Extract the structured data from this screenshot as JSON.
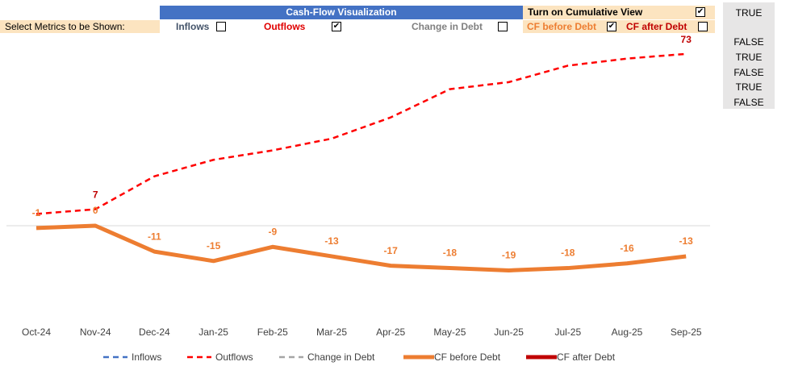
{
  "controls": {
    "title": "Cash-Flow Visualization",
    "cumulative": {
      "label": "Turn on Cumulative View",
      "checked": true
    },
    "select_label": "Select Metrics to be Shown:",
    "metrics": [
      {
        "label": "Inflows",
        "checked": false,
        "color": "#44546a"
      },
      {
        "label": "Outflows",
        "checked": true,
        "color": "#e00000"
      },
      {
        "label": "Change in Debt",
        "checked": false,
        "color": "#808080"
      },
      {
        "label": "CF before Debt",
        "checked": true,
        "color": "#ed7d31"
      },
      {
        "label": "CF after Debt",
        "checked": false,
        "color": "#c00000"
      }
    ]
  },
  "cells": [
    "TRUE",
    "FALSE",
    "TRUE",
    "FALSE",
    "TRUE",
    "FALSE"
  ],
  "chart_data": {
    "type": "line",
    "categories": [
      "Oct-24",
      "Nov-24",
      "Dec-24",
      "Jan-25",
      "Feb-25",
      "Mar-25",
      "Apr-25",
      "May-25",
      "Jun-25",
      "Jul-25",
      "Aug-25",
      "Sep-25"
    ],
    "ylim": [
      -40,
      80
    ],
    "series": [
      {
        "name": "Inflows",
        "color": "#4472c4",
        "dash": true
      },
      {
        "name": "Outflows",
        "color": "#ff0000",
        "dash": true,
        "label_color": "#c00000",
        "values": [
          5,
          7,
          21,
          28,
          32,
          37,
          46,
          58,
          61,
          68,
          71,
          73
        ],
        "value_labels": [
          null,
          "7",
          null,
          null,
          null,
          null,
          null,
          null,
          null,
          null,
          null,
          "73"
        ]
      },
      {
        "name": "Change in Debt",
        "color": "#a5a5a5",
        "dash": true
      },
      {
        "name": "CF before Debt",
        "color": "#ed7d31",
        "dash": false,
        "width": 5,
        "label_color": "#ed7d31",
        "values": [
          -1,
          0,
          -11,
          -15,
          -9,
          -13,
          -17,
          -18,
          -19,
          -18,
          -16,
          -13
        ]
      },
      {
        "name": "CF after Debt",
        "color": "#c00000",
        "dash": false
      }
    ]
  }
}
